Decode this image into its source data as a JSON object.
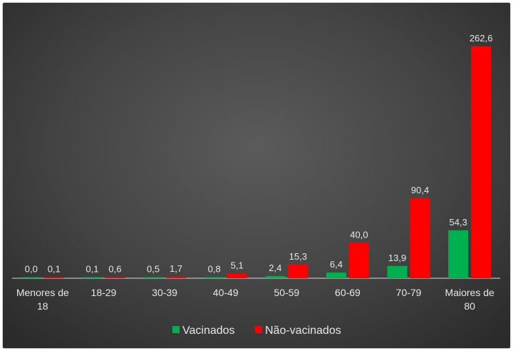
{
  "chart_data": {
    "type": "bar",
    "categories": [
      "Menores de 18",
      "18-29",
      "30-39",
      "40-49",
      "50-59",
      "60-69",
      "70-79",
      "Maiores de 80"
    ],
    "category_lines": [
      [
        "Menores de",
        "18"
      ],
      [
        "18-29"
      ],
      [
        "30-39"
      ],
      [
        "40-49"
      ],
      [
        "50-59"
      ],
      [
        "60-69"
      ],
      [
        "70-79"
      ],
      [
        "Maiores de",
        "80"
      ]
    ],
    "series": [
      {
        "name": "Vacinados",
        "color": "#00b050",
        "values": [
          0.0,
          0.1,
          0.5,
          0.8,
          2.4,
          6.4,
          13.9,
          54.3
        ],
        "labels": [
          "0,0",
          "0,1",
          "0,5",
          "0,8",
          "2,4",
          "6,4",
          "13,9",
          "54,3"
        ]
      },
      {
        "name": "Não-vacinados",
        "color": "#ff0000",
        "values": [
          0.1,
          0.6,
          1.7,
          5.1,
          15.3,
          40.0,
          90.4,
          262.6
        ],
        "labels": [
          "0,1",
          "0,6",
          "1,7",
          "5,1",
          "15,3",
          "40,0",
          "90,4",
          "262,6"
        ]
      }
    ],
    "legend_position": "bottom",
    "grid": false,
    "ylim": [
      0,
      262.6
    ]
  }
}
